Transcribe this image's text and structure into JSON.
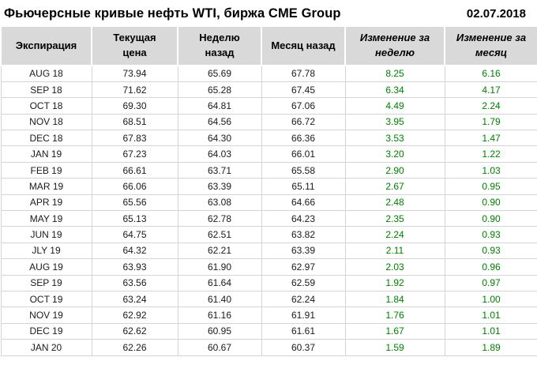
{
  "header": {
    "title": "Фьючерсные кривые нефть WTI, биржа CME Group",
    "date": "02.07.2018"
  },
  "colors": {
    "positive_change": "#008000",
    "header_bg": "#d9d9d9",
    "grid_line": "#d4d4d4",
    "text_color": "#000000"
  },
  "chart_data": {
    "type": "table",
    "title": "Фьючерсные кривые нефть WTI, биржа CME Group",
    "date": "02.07.2018",
    "columns": [
      {
        "key": "expiration",
        "label": "Экспирация",
        "italic": false
      },
      {
        "key": "current",
        "label": "Текущая цена",
        "italic": false
      },
      {
        "key": "week_ago",
        "label": "Неделю назад",
        "italic": false
      },
      {
        "key": "month_ago",
        "label": "Месяц назад",
        "italic": false
      },
      {
        "key": "week_change",
        "label": "Изменение за неделю",
        "italic": true
      },
      {
        "key": "month_change",
        "label": "Изменение за месяц",
        "italic": true
      }
    ],
    "rows": [
      {
        "expiration": "AUG 18",
        "current": "73.94",
        "week_ago": "65.69",
        "month_ago": "67.78",
        "week_change": "8.25",
        "month_change": "6.16"
      },
      {
        "expiration": "SEP 18",
        "current": "71.62",
        "week_ago": "65.28",
        "month_ago": "67.45",
        "week_change": "6.34",
        "month_change": "4.17"
      },
      {
        "expiration": "OCT 18",
        "current": "69.30",
        "week_ago": "64.81",
        "month_ago": "67.06",
        "week_change": "4.49",
        "month_change": "2.24"
      },
      {
        "expiration": "NOV 18",
        "current": "68.51",
        "week_ago": "64.56",
        "month_ago": "66.72",
        "week_change": "3.95",
        "month_change": "1.79"
      },
      {
        "expiration": "DEC 18",
        "current": "67.83",
        "week_ago": "64.30",
        "month_ago": "66.36",
        "week_change": "3.53",
        "month_change": "1.47"
      },
      {
        "expiration": "JAN 19",
        "current": "67.23",
        "week_ago": "64.03",
        "month_ago": "66.01",
        "week_change": "3.20",
        "month_change": "1.22"
      },
      {
        "expiration": "FEB 19",
        "current": "66.61",
        "week_ago": "63.71",
        "month_ago": "65.58",
        "week_change": "2.90",
        "month_change": "1.03"
      },
      {
        "expiration": "MAR 19",
        "current": "66.06",
        "week_ago": "63.39",
        "month_ago": "65.11",
        "week_change": "2.67",
        "month_change": "0.95"
      },
      {
        "expiration": "APR 19",
        "current": "65.56",
        "week_ago": "63.08",
        "month_ago": "64.66",
        "week_change": "2.48",
        "month_change": "0.90"
      },
      {
        "expiration": "MAY 19",
        "current": "65.13",
        "week_ago": "62.78",
        "month_ago": "64.23",
        "week_change": "2.35",
        "month_change": "0.90"
      },
      {
        "expiration": "JUN 19",
        "current": "64.75",
        "week_ago": "62.51",
        "month_ago": "63.82",
        "week_change": "2.24",
        "month_change": "0.93"
      },
      {
        "expiration": "JLY 19",
        "current": "64.32",
        "week_ago": "62.21",
        "month_ago": "63.39",
        "week_change": "2.11",
        "month_change": "0.93"
      },
      {
        "expiration": "AUG 19",
        "current": "63.93",
        "week_ago": "61.90",
        "month_ago": "62.97",
        "week_change": "2.03",
        "month_change": "0.96"
      },
      {
        "expiration": "SEP 19",
        "current": "63.56",
        "week_ago": "61.64",
        "month_ago": "62.59",
        "week_change": "1.92",
        "month_change": "0.97"
      },
      {
        "expiration": "OCT 19",
        "current": "63.24",
        "week_ago": "61.40",
        "month_ago": "62.24",
        "week_change": "1.84",
        "month_change": "1.00"
      },
      {
        "expiration": "NOV 19",
        "current": "62.92",
        "week_ago": "61.16",
        "month_ago": "61.91",
        "week_change": "1.76",
        "month_change": "1.01"
      },
      {
        "expiration": "DEC 19",
        "current": "62.62",
        "week_ago": "60.95",
        "month_ago": "61.61",
        "week_change": "1.67",
        "month_change": "1.01"
      },
      {
        "expiration": "JAN 20",
        "current": "62.26",
        "week_ago": "60.67",
        "month_ago": "60.37",
        "week_change": "1.59",
        "month_change": "1.89"
      }
    ]
  }
}
